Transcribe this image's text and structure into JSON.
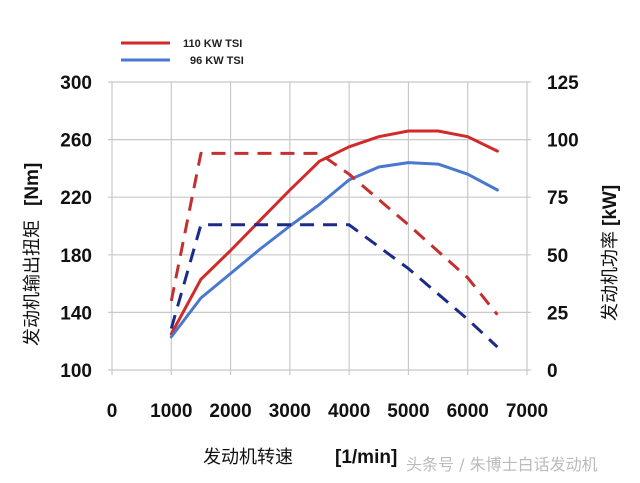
{
  "chart_data": {
    "type": "line",
    "title": "",
    "xlabel": "发动机转速",
    "xlabel_unit": "[1/min]",
    "ylabel_left": "发动机输出扭矩",
    "ylabel_left_unit": "[Nm]",
    "ylabel_right": "发动机功率",
    "ylabel_right_unit": "[kW]",
    "xlim": [
      0,
      7000
    ],
    "ylim_left": [
      100,
      300
    ],
    "ylim_right": [
      0,
      125
    ],
    "x_ticks": [
      "0",
      "1000",
      "2000",
      "3000",
      "4000",
      "5000",
      "6000",
      "7000"
    ],
    "y_left_ticks": [
      "300",
      "260",
      "220",
      "180",
      "140",
      "100"
    ],
    "y_right_ticks": [
      "125",
      "100",
      "75",
      "50",
      "25",
      "0"
    ],
    "grid": true,
    "legend_position": "top-left",
    "legend": [
      {
        "label": "110 KW TSI",
        "color": "#d02a2a"
      },
      {
        "label": "96 KW TSI",
        "color": "#4a78cf"
      }
    ],
    "series": [
      {
        "name": "110 KW TSI torque",
        "axis": "left",
        "style": "solid",
        "color": "#d02a2a",
        "x": [
          1000,
          1500,
          2000,
          2500,
          3000,
          3500,
          4000,
          4500,
          5000,
          5500,
          6000,
          6500
        ],
        "values": [
          125,
          163,
          183,
          204,
          225,
          245,
          255,
          262,
          266,
          266,
          262,
          252
        ]
      },
      {
        "name": "96 KW TSI torque",
        "axis": "left",
        "style": "solid",
        "color": "#4a78cf",
        "x": [
          1000,
          1500,
          2000,
          2500,
          3000,
          3500,
          4000,
          4500,
          5000,
          5500,
          6000,
          6500
        ],
        "values": [
          123,
          150,
          167,
          184,
          200,
          215,
          232,
          241,
          244,
          243,
          236,
          225
        ]
      },
      {
        "name": "110 KW TSI power",
        "axis": "right",
        "style": "dashed",
        "color": "#c43030",
        "x": [
          1000,
          1500,
          3500,
          4000,
          5000,
          6000,
          6500
        ],
        "values": [
          30,
          94,
          94,
          85,
          63,
          40,
          24
        ]
      },
      {
        "name": "96 KW TSI power",
        "axis": "right",
        "style": "dashed",
        "color": "#1c2a8a",
        "x": [
          1000,
          1500,
          4000,
          5000,
          6000,
          6500
        ],
        "values": [
          18,
          63,
          63,
          44,
          22,
          10
        ]
      }
    ]
  },
  "watermark": "头条号 / 朱博士白话发动机"
}
